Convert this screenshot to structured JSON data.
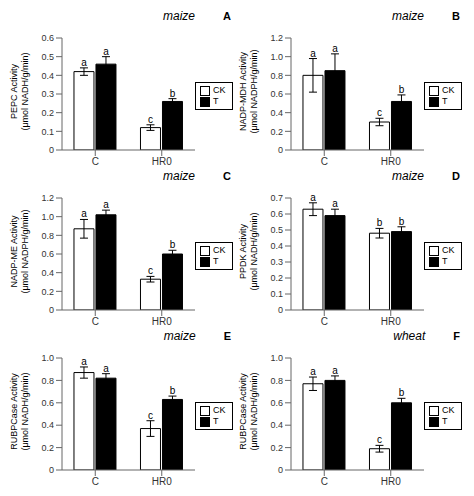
{
  "chart_data": [
    {
      "type": "bar",
      "title": "maize",
      "annotations": [
        "A"
      ],
      "ylabel": "PEPC Activity\n(μmol NADH/g/min)",
      "categories": [
        "C",
        "HR0"
      ],
      "series": [
        {
          "name": "CK",
          "color": "white",
          "values": [
            0.42,
            0.12
          ],
          "errors": [
            0.02,
            0.015
          ],
          "annotations": [
            "a",
            "c"
          ]
        },
        {
          "name": "T",
          "color": "black",
          "values": [
            0.46,
            0.26
          ],
          "errors": [
            0.04,
            0.015
          ],
          "annotations": [
            "a",
            "b"
          ]
        }
      ],
      "ylim": [
        0,
        0.6
      ],
      "yticks": [
        0,
        0.1,
        0.2,
        0.3,
        0.4,
        0.5,
        0.6
      ],
      "grid": false,
      "legend": "right"
    },
    {
      "type": "bar",
      "title": "maize",
      "annotations": [
        "B"
      ],
      "ylabel": "NADP-MDH Activity\n(μmol NADPH/g/min)",
      "categories": [
        "C",
        "HR0"
      ],
      "series": [
        {
          "name": "CK",
          "color": "white",
          "values": [
            0.8,
            0.3
          ],
          "errors": [
            0.18,
            0.04
          ],
          "annotations": [
            "a",
            "c"
          ]
        },
        {
          "name": "T",
          "color": "black",
          "values": [
            0.85,
            0.52
          ],
          "errors": [
            0.18,
            0.07
          ],
          "annotations": [
            "a",
            "b"
          ]
        }
      ],
      "ylim": [
        0,
        1.2
      ],
      "yticks": [
        0,
        0.2,
        0.4,
        0.6,
        0.8,
        {
          "value": 1.0,
          "label": "1.0"
        },
        1.2
      ],
      "grid": false,
      "legend": "right"
    },
    {
      "type": "bar",
      "title": "maize",
      "annotations": [
        "C"
      ],
      "ylabel": "NADP-ME Activity\n(μmol NADPH/g/min)",
      "categories": [
        "C",
        "HR0"
      ],
      "series": [
        {
          "name": "CK",
          "color": "white",
          "values": [
            0.87,
            0.33
          ],
          "errors": [
            0.1,
            0.03
          ],
          "annotations": [
            "a",
            "c"
          ]
        },
        {
          "name": "T",
          "color": "black",
          "values": [
            1.02,
            0.6
          ],
          "errors": [
            0.05,
            0.04
          ],
          "annotations": [
            "a",
            "b"
          ]
        }
      ],
      "ylim": [
        0,
        1.2
      ],
      "yticks": [
        0,
        0.2,
        0.4,
        0.6,
        0.8,
        {
          "value": 1.0,
          "label": "1.0"
        },
        1.2
      ],
      "grid": false,
      "legend": "right"
    },
    {
      "type": "bar",
      "title": "maize",
      "annotations": [
        "D"
      ],
      "ylabel": "PPDK Activity\n(μmol NADH/g/min)",
      "categories": [
        "C",
        "HR0"
      ],
      "series": [
        {
          "name": "CK",
          "color": "white",
          "values": [
            0.63,
            0.48
          ],
          "errors": [
            0.04,
            0.03
          ],
          "annotations": [
            "a",
            "b"
          ]
        },
        {
          "name": "T",
          "color": "black",
          "values": [
            0.59,
            0.49
          ],
          "errors": [
            0.04,
            0.03
          ],
          "annotations": [
            "a",
            "b"
          ]
        }
      ],
      "ylim": [
        0,
        0.7
      ],
      "yticks": [
        0,
        0.1,
        0.2,
        0.3,
        0.4,
        0.5,
        0.6,
        0.7
      ],
      "grid": false,
      "legend": "right"
    },
    {
      "type": "bar",
      "title": "maize",
      "annotations": [
        "E"
      ],
      "ylabel": "RUBPCase Activity\n(μmol NADH/g/min)",
      "categories": [
        "C",
        "HR0"
      ],
      "series": [
        {
          "name": "CK",
          "color": "white",
          "values": [
            0.87,
            0.37
          ],
          "errors": [
            0.05,
            0.07
          ],
          "annotations": [
            "a",
            "c"
          ]
        },
        {
          "name": "T",
          "color": "black",
          "values": [
            0.82,
            0.63
          ],
          "errors": [
            0.04,
            0.03
          ],
          "annotations": [
            "a",
            "b"
          ]
        }
      ],
      "ylim": [
        0,
        1.0
      ],
      "yticks": [
        0,
        0.2,
        0.4,
        0.6,
        0.8,
        {
          "value": 1.0,
          "label": "1.0"
        }
      ],
      "grid": false,
      "legend": "right"
    },
    {
      "type": "bar",
      "title": "wheat",
      "annotations": [
        "F"
      ],
      "ylabel": "RUBPCase Activity\n(μmol NADH/g/min)",
      "categories": [
        "C",
        "HR0"
      ],
      "series": [
        {
          "name": "CK",
          "color": "white",
          "values": [
            0.77,
            0.19
          ],
          "errors": [
            0.06,
            0.03
          ],
          "annotations": [
            "a",
            "c"
          ]
        },
        {
          "name": "T",
          "color": "black",
          "values": [
            0.8,
            0.6
          ],
          "errors": [
            0.04,
            0.04
          ],
          "annotations": [
            "a",
            "b"
          ]
        }
      ],
      "ylim": [
        0,
        1.0
      ],
      "yticks": [
        0,
        0.2,
        0.4,
        0.6,
        0.8,
        {
          "value": 1.0,
          "label": "1.0"
        }
      ],
      "grid": false,
      "legend": "right"
    }
  ]
}
